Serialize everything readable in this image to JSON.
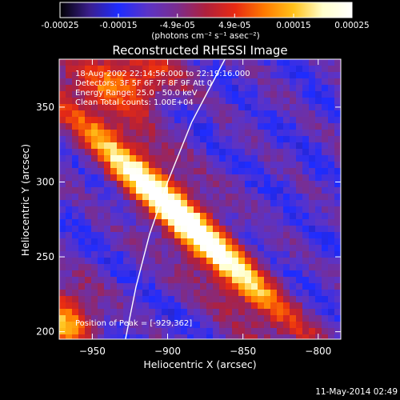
{
  "colors": {
    "background": "#000000",
    "foreground": "#ffffff",
    "limb": "#ffffff",
    "colormap": [
      "#000000",
      "#3a1e8c",
      "#1e2cff",
      "#5b33c7",
      "#7a2d8f",
      "#b0203c",
      "#e82a12",
      "#ff7a00",
      "#ffc21a",
      "#ffffcc",
      "#ffffff"
    ]
  },
  "colorbar": {
    "tick_labels": [
      "-0.00025",
      "-0.00015",
      "-4.9e-05",
      "4.9e-05",
      "0.00015",
      "0.00025"
    ],
    "unit_label": "(photons cm⁻² s⁻¹ asec⁻²)",
    "range": [
      -0.00025,
      0.00025
    ]
  },
  "chart_data": {
    "type": "heatmap",
    "title": "Reconstructed RHESSI Image",
    "xlabel": "Heliocentric X (arcsec)",
    "ylabel": "Heliocentric Y (arcsec)",
    "xlim": [
      -972,
      -785
    ],
    "ylim": [
      195,
      382
    ],
    "xticks": [
      -950,
      -900,
      -850,
      -800
    ],
    "yticks": [
      200,
      250,
      300,
      350
    ],
    "annotations": [
      "18-Aug-2002 22:14:56.000 to 22:19:16.000",
      "Detectors: 3F 5F 6F 7F 8F 9F  Att 0",
      "Energy Range: 25.0 - 50.0 keV",
      "Clean    Total counts: 1.00E+04"
    ],
    "peak_label": "Position of Peak = [-929,362]",
    "peak_position": [
      -929,
      362
    ],
    "limb_points": [
      [
        -928,
        195
      ],
      [
        -921,
        230
      ],
      [
        -912,
        265
      ],
      [
        -900,
        300
      ],
      [
        -884,
        340
      ],
      [
        -862,
        382
      ]
    ]
  },
  "footer": {
    "timestamp": "11-May-2014 02:49"
  }
}
